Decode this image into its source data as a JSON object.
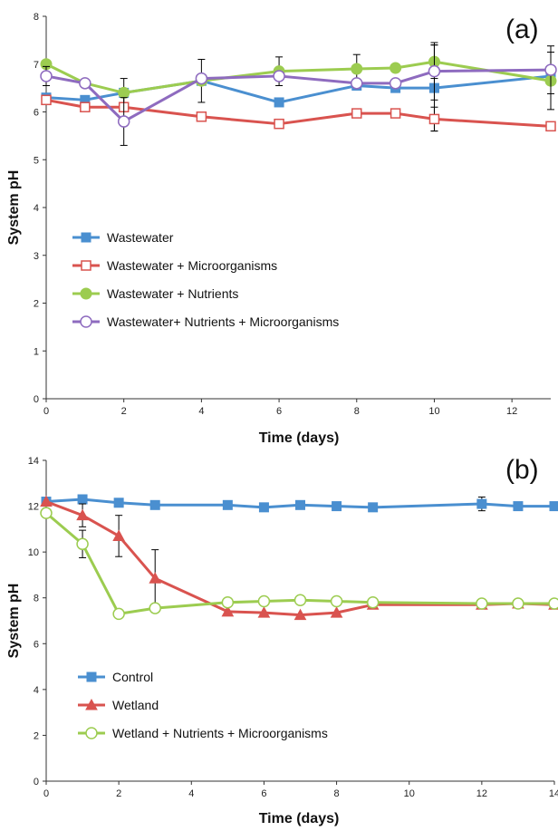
{
  "chart_data": [
    {
      "type": "line",
      "panel_label": "(a)",
      "xlabel": "Time (days)",
      "ylabel": "System pH",
      "xlim": [
        0,
        13
      ],
      "ylim": [
        0,
        8
      ],
      "xticks": [
        0,
        2,
        4,
        6,
        8,
        10,
        12
      ],
      "yticks": [
        0,
        1,
        2,
        3,
        4,
        5,
        6,
        7,
        8
      ],
      "grid": false,
      "legend_position": "center-left",
      "series": [
        {
          "name": "Wastewater",
          "color": "#4a8fd0",
          "marker": "square-filled",
          "points": [
            {
              "x": 0,
              "y": 6.3,
              "err": 0
            },
            {
              "x": 1,
              "y": 6.25,
              "err": 0
            },
            {
              "x": 2,
              "y": 6.4,
              "err": 0.3
            },
            {
              "x": 4,
              "y": 6.65,
              "err": 0
            },
            {
              "x": 6,
              "y": 6.2,
              "err": 0
            },
            {
              "x": 8,
              "y": 6.55,
              "err": 0
            },
            {
              "x": 9,
              "y": 6.5,
              "err": 0
            },
            {
              "x": 10,
              "y": 6.5,
              "err": 0.9
            },
            {
              "x": 13,
              "y": 6.75,
              "err": 0
            }
          ]
        },
        {
          "name": "Wastewater + Microorganisms",
          "color": "#d9534f",
          "marker": "square-open",
          "points": [
            {
              "x": 0,
              "y": 6.25,
              "err": 0
            },
            {
              "x": 1,
              "y": 6.1,
              "err": 0
            },
            {
              "x": 2,
              "y": 6.1,
              "err": 0
            },
            {
              "x": 4,
              "y": 5.9,
              "err": 0
            },
            {
              "x": 6,
              "y": 5.75,
              "err": 0
            },
            {
              "x": 8,
              "y": 5.97,
              "err": 0
            },
            {
              "x": 9,
              "y": 5.97,
              "err": 0
            },
            {
              "x": 10,
              "y": 5.85,
              "err": 0.25
            },
            {
              "x": 13,
              "y": 5.7,
              "err": 0
            }
          ]
        },
        {
          "name": "Wastewater + Nutrients",
          "color": "#9ccc50",
          "marker": "circle-filled",
          "points": [
            {
              "x": 0,
              "y": 7.0,
              "err": 0
            },
            {
              "x": 1,
              "y": 6.6,
              "err": 0
            },
            {
              "x": 2,
              "y": 6.4,
              "err": 0
            },
            {
              "x": 4,
              "y": 6.65,
              "err": 0.45
            },
            {
              "x": 6,
              "y": 6.85,
              "err": 0.3
            },
            {
              "x": 8,
              "y": 6.9,
              "err": 0.3
            },
            {
              "x": 9,
              "y": 6.92,
              "err": 0
            },
            {
              "x": 10,
              "y": 7.05,
              "err": 0.35
            },
            {
              "x": 13,
              "y": 6.65,
              "err": 0.6
            }
          ]
        },
        {
          "name": "Wastewater+ Nutrients + Microorganisms",
          "color": "#8e6bbf",
          "marker": "circle-open",
          "points": [
            {
              "x": 0,
              "y": 6.75,
              "err": 0.2
            },
            {
              "x": 1,
              "y": 6.6,
              "err": 0
            },
            {
              "x": 2,
              "y": 5.8,
              "err": 0.5
            },
            {
              "x": 4,
              "y": 6.7,
              "err": 0
            },
            {
              "x": 6,
              "y": 6.75,
              "err": 0
            },
            {
              "x": 8,
              "y": 6.6,
              "err": 0
            },
            {
              "x": 9,
              "y": 6.6,
              "err": 0
            },
            {
              "x": 10,
              "y": 6.85,
              "err": 0.6
            },
            {
              "x": 13,
              "y": 6.88,
              "err": 0.5
            }
          ]
        }
      ]
    },
    {
      "type": "line",
      "panel_label": "(b)",
      "xlabel": "Time (days)",
      "ylabel": "System pH",
      "xlim": [
        0,
        14
      ],
      "ylim": [
        0,
        14
      ],
      "xticks": [
        0,
        2,
        4,
        6,
        8,
        10,
        12,
        14
      ],
      "yticks": [
        0,
        2,
        4,
        6,
        8,
        10,
        12,
        14
      ],
      "grid": false,
      "legend_position": "bottom-left",
      "series": [
        {
          "name": "Control",
          "color": "#4a8fd0",
          "marker": "square-filled",
          "points": [
            {
              "x": 0,
              "y": 12.2,
              "err": 0
            },
            {
              "x": 1,
              "y": 12.3,
              "err": 0
            },
            {
              "x": 2,
              "y": 12.15,
              "err": 0
            },
            {
              "x": 3,
              "y": 12.05,
              "err": 0
            },
            {
              "x": 5,
              "y": 12.05,
              "err": 0
            },
            {
              "x": 6,
              "y": 11.95,
              "err": 0
            },
            {
              "x": 7,
              "y": 12.05,
              "err": 0
            },
            {
              "x": 8,
              "y": 12.0,
              "err": 0
            },
            {
              "x": 9,
              "y": 11.95,
              "err": 0
            },
            {
              "x": 12,
              "y": 12.1,
              "err": 0.3
            },
            {
              "x": 13,
              "y": 12.0,
              "err": 0
            },
            {
              "x": 14,
              "y": 12.0,
              "err": 0
            }
          ]
        },
        {
          "name": "Wetland",
          "color": "#d9534f",
          "marker": "triangle-filled",
          "points": [
            {
              "x": 0,
              "y": 12.2,
              "err": 0
            },
            {
              "x": 1,
              "y": 11.6,
              "err": 0.5
            },
            {
              "x": 2,
              "y": 10.7,
              "err": 0.9
            },
            {
              "x": 3,
              "y": 8.85,
              "err": 1.25
            },
            {
              "x": 5,
              "y": 7.4,
              "err": 0
            },
            {
              "x": 6,
              "y": 7.35,
              "err": 0
            },
            {
              "x": 7,
              "y": 7.25,
              "err": 0
            },
            {
              "x": 8,
              "y": 7.35,
              "err": 0
            },
            {
              "x": 9,
              "y": 7.7,
              "err": 0
            },
            {
              "x": 12,
              "y": 7.7,
              "err": 0
            },
            {
              "x": 13,
              "y": 7.75,
              "err": 0
            },
            {
              "x": 14,
              "y": 7.7,
              "err": 0
            }
          ]
        },
        {
          "name": "Wetland + Nutrients + Microorganisms",
          "color": "#9ccc50",
          "marker": "circle-open",
          "points": [
            {
              "x": 0,
              "y": 11.7,
              "err": 0
            },
            {
              "x": 1,
              "y": 10.35,
              "err": 0.6
            },
            {
              "x": 2,
              "y": 7.3,
              "err": 0
            },
            {
              "x": 3,
              "y": 7.55,
              "err": 0
            },
            {
              "x": 5,
              "y": 7.8,
              "err": 0
            },
            {
              "x": 6,
              "y": 7.85,
              "err": 0
            },
            {
              "x": 7,
              "y": 7.9,
              "err": 0
            },
            {
              "x": 8,
              "y": 7.85,
              "err": 0
            },
            {
              "x": 9,
              "y": 7.8,
              "err": 0
            },
            {
              "x": 12,
              "y": 7.75,
              "err": 0
            },
            {
              "x": 13,
              "y": 7.75,
              "err": 0
            },
            {
              "x": 14,
              "y": 7.75,
              "err": 0
            }
          ]
        }
      ]
    }
  ]
}
